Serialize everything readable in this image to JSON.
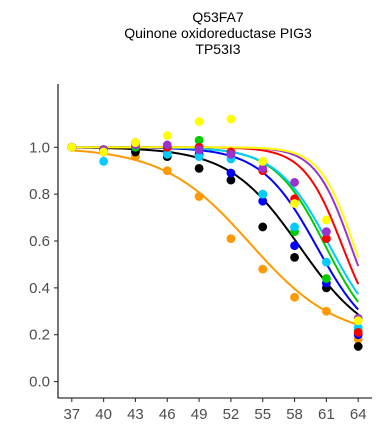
{
  "chart_data": {
    "type": "scatter",
    "title_lines": [
      "Q53FA7",
      "Quinone oxidoreductase PIG3",
      "TP53I3"
    ],
    "xlabel": "",
    "ylabel": "",
    "x_ticks": [
      37,
      40,
      43,
      46,
      49,
      52,
      55,
      58,
      61,
      64
    ],
    "y_ticks": [
      "0.0",
      "0.2",
      "0.4",
      "0.6",
      "0.8",
      "1.0"
    ],
    "xlim": [
      35.7,
      65.3
    ],
    "ylim": [
      -0.07,
      1.27
    ],
    "grid": false,
    "legend": "none",
    "series": [
      {
        "color": "#FF9900",
        "curve": {
          "tm": 53.8,
          "slope": 0.245,
          "plateau": 0.18
        },
        "x": [
          37,
          40,
          43,
          46,
          49,
          52,
          55,
          58,
          61,
          64
        ],
        "y": [
          1.0,
          0.99,
          0.96,
          0.9,
          0.79,
          0.61,
          0.48,
          0.36,
          0.3,
          0.18
        ]
      },
      {
        "color": "#000000",
        "curve": {
          "tm": 58.5,
          "slope": 0.3,
          "plateau": 0.15
        },
        "x": [
          37,
          40,
          43,
          46,
          49,
          52,
          55,
          58,
          61,
          64
        ],
        "y": [
          1.0,
          0.98,
          0.98,
          0.96,
          0.91,
          0.86,
          0.66,
          0.53,
          0.4,
          0.15
        ]
      },
      {
        "color": "#0000FF",
        "curve": {
          "tm": 60.1,
          "slope": 0.38,
          "plateau": 0.15
        },
        "x": [
          37,
          40,
          43,
          46,
          49,
          52,
          55,
          58,
          61,
          64
        ],
        "y": [
          1.0,
          0.99,
          1.0,
          1.0,
          0.97,
          0.89,
          0.77,
          0.58,
          0.42,
          0.2
        ]
      },
      {
        "color": "#00CC00",
        "curve": {
          "tm": 60.9,
          "slope": 0.42,
          "plateau": 0.16
        },
        "x": [
          37,
          40,
          43,
          46,
          49,
          52,
          55,
          58,
          61,
          64
        ],
        "y": [
          1.0,
          0.99,
          1.0,
          1.0,
          1.03,
          0.97,
          0.8,
          0.64,
          0.44,
          0.22
        ]
      },
      {
        "color": "#00CCFF",
        "curve": {
          "tm": 61.3,
          "slope": 0.4,
          "plateau": 0.16
        },
        "x": [
          37,
          40,
          43,
          46,
          49,
          52,
          55,
          58,
          61,
          64
        ],
        "y": [
          1.0,
          0.94,
          1.01,
          0.97,
          0.96,
          0.95,
          0.8,
          0.66,
          0.51,
          0.23
        ]
      },
      {
        "color": "#FF0000",
        "curve": {
          "tm": 62.5,
          "slope": 0.55,
          "plateau": 0.16
        },
        "x": [
          37,
          40,
          43,
          46,
          49,
          52,
          55,
          58,
          61,
          64
        ],
        "y": [
          1.0,
          0.99,
          1.02,
          1.0,
          1.0,
          0.98,
          0.9,
          0.78,
          0.61,
          0.21
        ]
      },
      {
        "color": "#9933CC",
        "curve": {
          "tm": 63.3,
          "slope": 0.6,
          "plateau": 0.16
        },
        "x": [
          37,
          40,
          43,
          46,
          49,
          52,
          55,
          58,
          61,
          64
        ],
        "y": [
          1.0,
          0.99,
          1.01,
          1.01,
          0.99,
          0.97,
          0.91,
          0.85,
          0.64,
          0.27
        ]
      },
      {
        "color": "#FFFF00",
        "curve": {
          "tm": 63.6,
          "slope": 0.62,
          "plateau": 0.16
        },
        "x": [
          37,
          40,
          43,
          46,
          49,
          52,
          55,
          58,
          61,
          64
        ],
        "y": [
          1.0,
          0.98,
          1.02,
          1.05,
          1.11,
          1.12,
          0.94,
          0.76,
          0.69,
          0.26
        ]
      }
    ]
  }
}
